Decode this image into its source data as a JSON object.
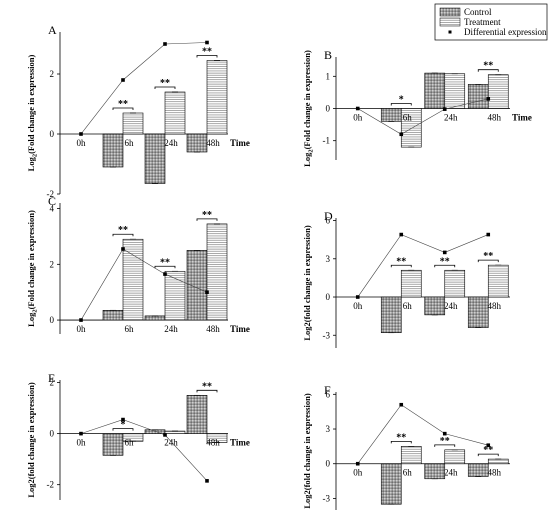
{
  "legend": {
    "control": "Control",
    "treatment": "Treatment",
    "differential": "Differential expression"
  },
  "colors": {
    "control_fill": "#9e9e9e",
    "treatment_fill": "#ffffff",
    "line": "#000000"
  },
  "chart_data": [
    {
      "panel": "A",
      "type": "bar",
      "ylabel_main": "Log",
      "ylabel_sub": "2",
      "ylabel_rest": "(Fold change in expression)",
      "xlabel": "Time",
      "categories": [
        "0h",
        "6h",
        "24h",
        "48h"
      ],
      "ylim": [
        -2,
        3.4
      ],
      "yticks": [
        "-2",
        "0",
        "2"
      ],
      "ytick_values": [
        -2,
        0,
        2
      ],
      "series": [
        {
          "name": "Control",
          "values": [
            0,
            -1.1,
            -1.65,
            -0.6
          ]
        },
        {
          "name": "Treatment",
          "values": [
            0,
            0.7,
            1.4,
            2.45
          ]
        },
        {
          "name": "Differential expression",
          "values": [
            0,
            1.8,
            3.0,
            3.05
          ]
        }
      ],
      "significance": [
        "",
        "**",
        "**",
        "**"
      ]
    },
    {
      "panel": "B",
      "type": "bar",
      "ylabel_main": "Log",
      "ylabel_sub": "2",
      "ylabel_rest": "(Fold change in expression)",
      "xlabel": "Time",
      "categories": [
        "0h",
        "6h",
        "24h",
        "48h"
      ],
      "ylim": [
        -1.6,
        1.6
      ],
      "yticks": [
        "-1",
        "0",
        "1"
      ],
      "ytick_values": [
        -1,
        0,
        1
      ],
      "series": [
        {
          "name": "Control",
          "values": [
            0,
            -0.4,
            1.1,
            0.75
          ]
        },
        {
          "name": "Treatment",
          "values": [
            0,
            -1.2,
            1.08,
            1.05
          ]
        },
        {
          "name": "Differential expression",
          "values": [
            0,
            -0.8,
            -0.02,
            0.3
          ]
        }
      ],
      "significance": [
        "",
        "*",
        "",
        "**"
      ]
    },
    {
      "panel": "C",
      "type": "bar",
      "ylabel_main": "Log",
      "ylabel_sub": "2",
      "ylabel_rest": "(Fold change in expression)",
      "xlabel": "Time",
      "categories": [
        "0h",
        "6h",
        "24h",
        "48h"
      ],
      "ylim": [
        -0.5,
        4.2
      ],
      "yticks": [
        "0",
        "2",
        "4"
      ],
      "ytick_values": [
        0,
        2,
        4
      ],
      "series": [
        {
          "name": "Control",
          "values": [
            0,
            0.35,
            0.15,
            2.5
          ]
        },
        {
          "name": "Treatment",
          "values": [
            0,
            2.9,
            1.75,
            3.45
          ]
        },
        {
          "name": "Differential expression",
          "values": [
            0,
            2.55,
            1.65,
            1.0
          ]
        }
      ],
      "significance": [
        "",
        "**",
        "**",
        "**"
      ]
    },
    {
      "panel": "D",
      "type": "bar",
      "ylabel_main": "Log2(fold change in expression)",
      "xlabel": "",
      "categories": [
        "0h",
        "6h",
        "24h",
        "48h"
      ],
      "ylim": [
        -4,
        6.2
      ],
      "yticks": [
        "-3",
        "0",
        "3",
        "6"
      ],
      "ytick_values": [
        -3,
        0,
        3,
        6
      ],
      "series": [
        {
          "name": "Control",
          "values": [
            0,
            -2.8,
            -1.4,
            -2.4
          ]
        },
        {
          "name": "Treatment",
          "values": [
            0,
            2.1,
            2.1,
            2.5
          ]
        },
        {
          "name": "Differential expression",
          "values": [
            0,
            4.9,
            3.5,
            4.9
          ]
        }
      ],
      "significance": [
        "",
        "**",
        "**",
        "**"
      ]
    },
    {
      "panel": "E",
      "type": "bar",
      "ylabel_main": "Log2(fold change in expression)",
      "xlabel": "Time",
      "categories": [
        "0h",
        "6h",
        "24h",
        "48h"
      ],
      "ylim": [
        -2.6,
        2.1
      ],
      "yticks": [
        "-2",
        "0",
        "2"
      ],
      "ytick_values": [
        -2,
        0,
        2
      ],
      "series": [
        {
          "name": "Control",
          "values": [
            0,
            -0.85,
            0.15,
            1.5
          ]
        },
        {
          "name": "Treatment",
          "values": [
            0,
            -0.3,
            0.1,
            -0.35
          ]
        },
        {
          "name": "Differential expression",
          "values": [
            0,
            0.55,
            -0.05,
            -1.85
          ]
        }
      ],
      "significance": [
        "",
        "*",
        "",
        "**"
      ]
    },
    {
      "panel": "F",
      "type": "bar",
      "ylabel_main": "Log2(fold change in expression)",
      "xlabel": "",
      "categories": [
        "0h",
        "6h",
        "24h",
        "48h"
      ],
      "ylim": [
        -4,
        6.2
      ],
      "yticks": [
        "-3",
        "0",
        "3",
        "6"
      ],
      "ytick_values": [
        -3,
        0,
        3,
        6
      ],
      "series": [
        {
          "name": "Control",
          "values": [
            0,
            -3.5,
            -1.3,
            -1.1
          ]
        },
        {
          "name": "Treatment",
          "values": [
            0,
            1.5,
            1.2,
            0.4
          ]
        },
        {
          "name": "Differential expression",
          "values": [
            0,
            5.1,
            2.6,
            1.6
          ]
        }
      ],
      "significance": [
        "",
        "**",
        "**",
        "**"
      ]
    }
  ]
}
